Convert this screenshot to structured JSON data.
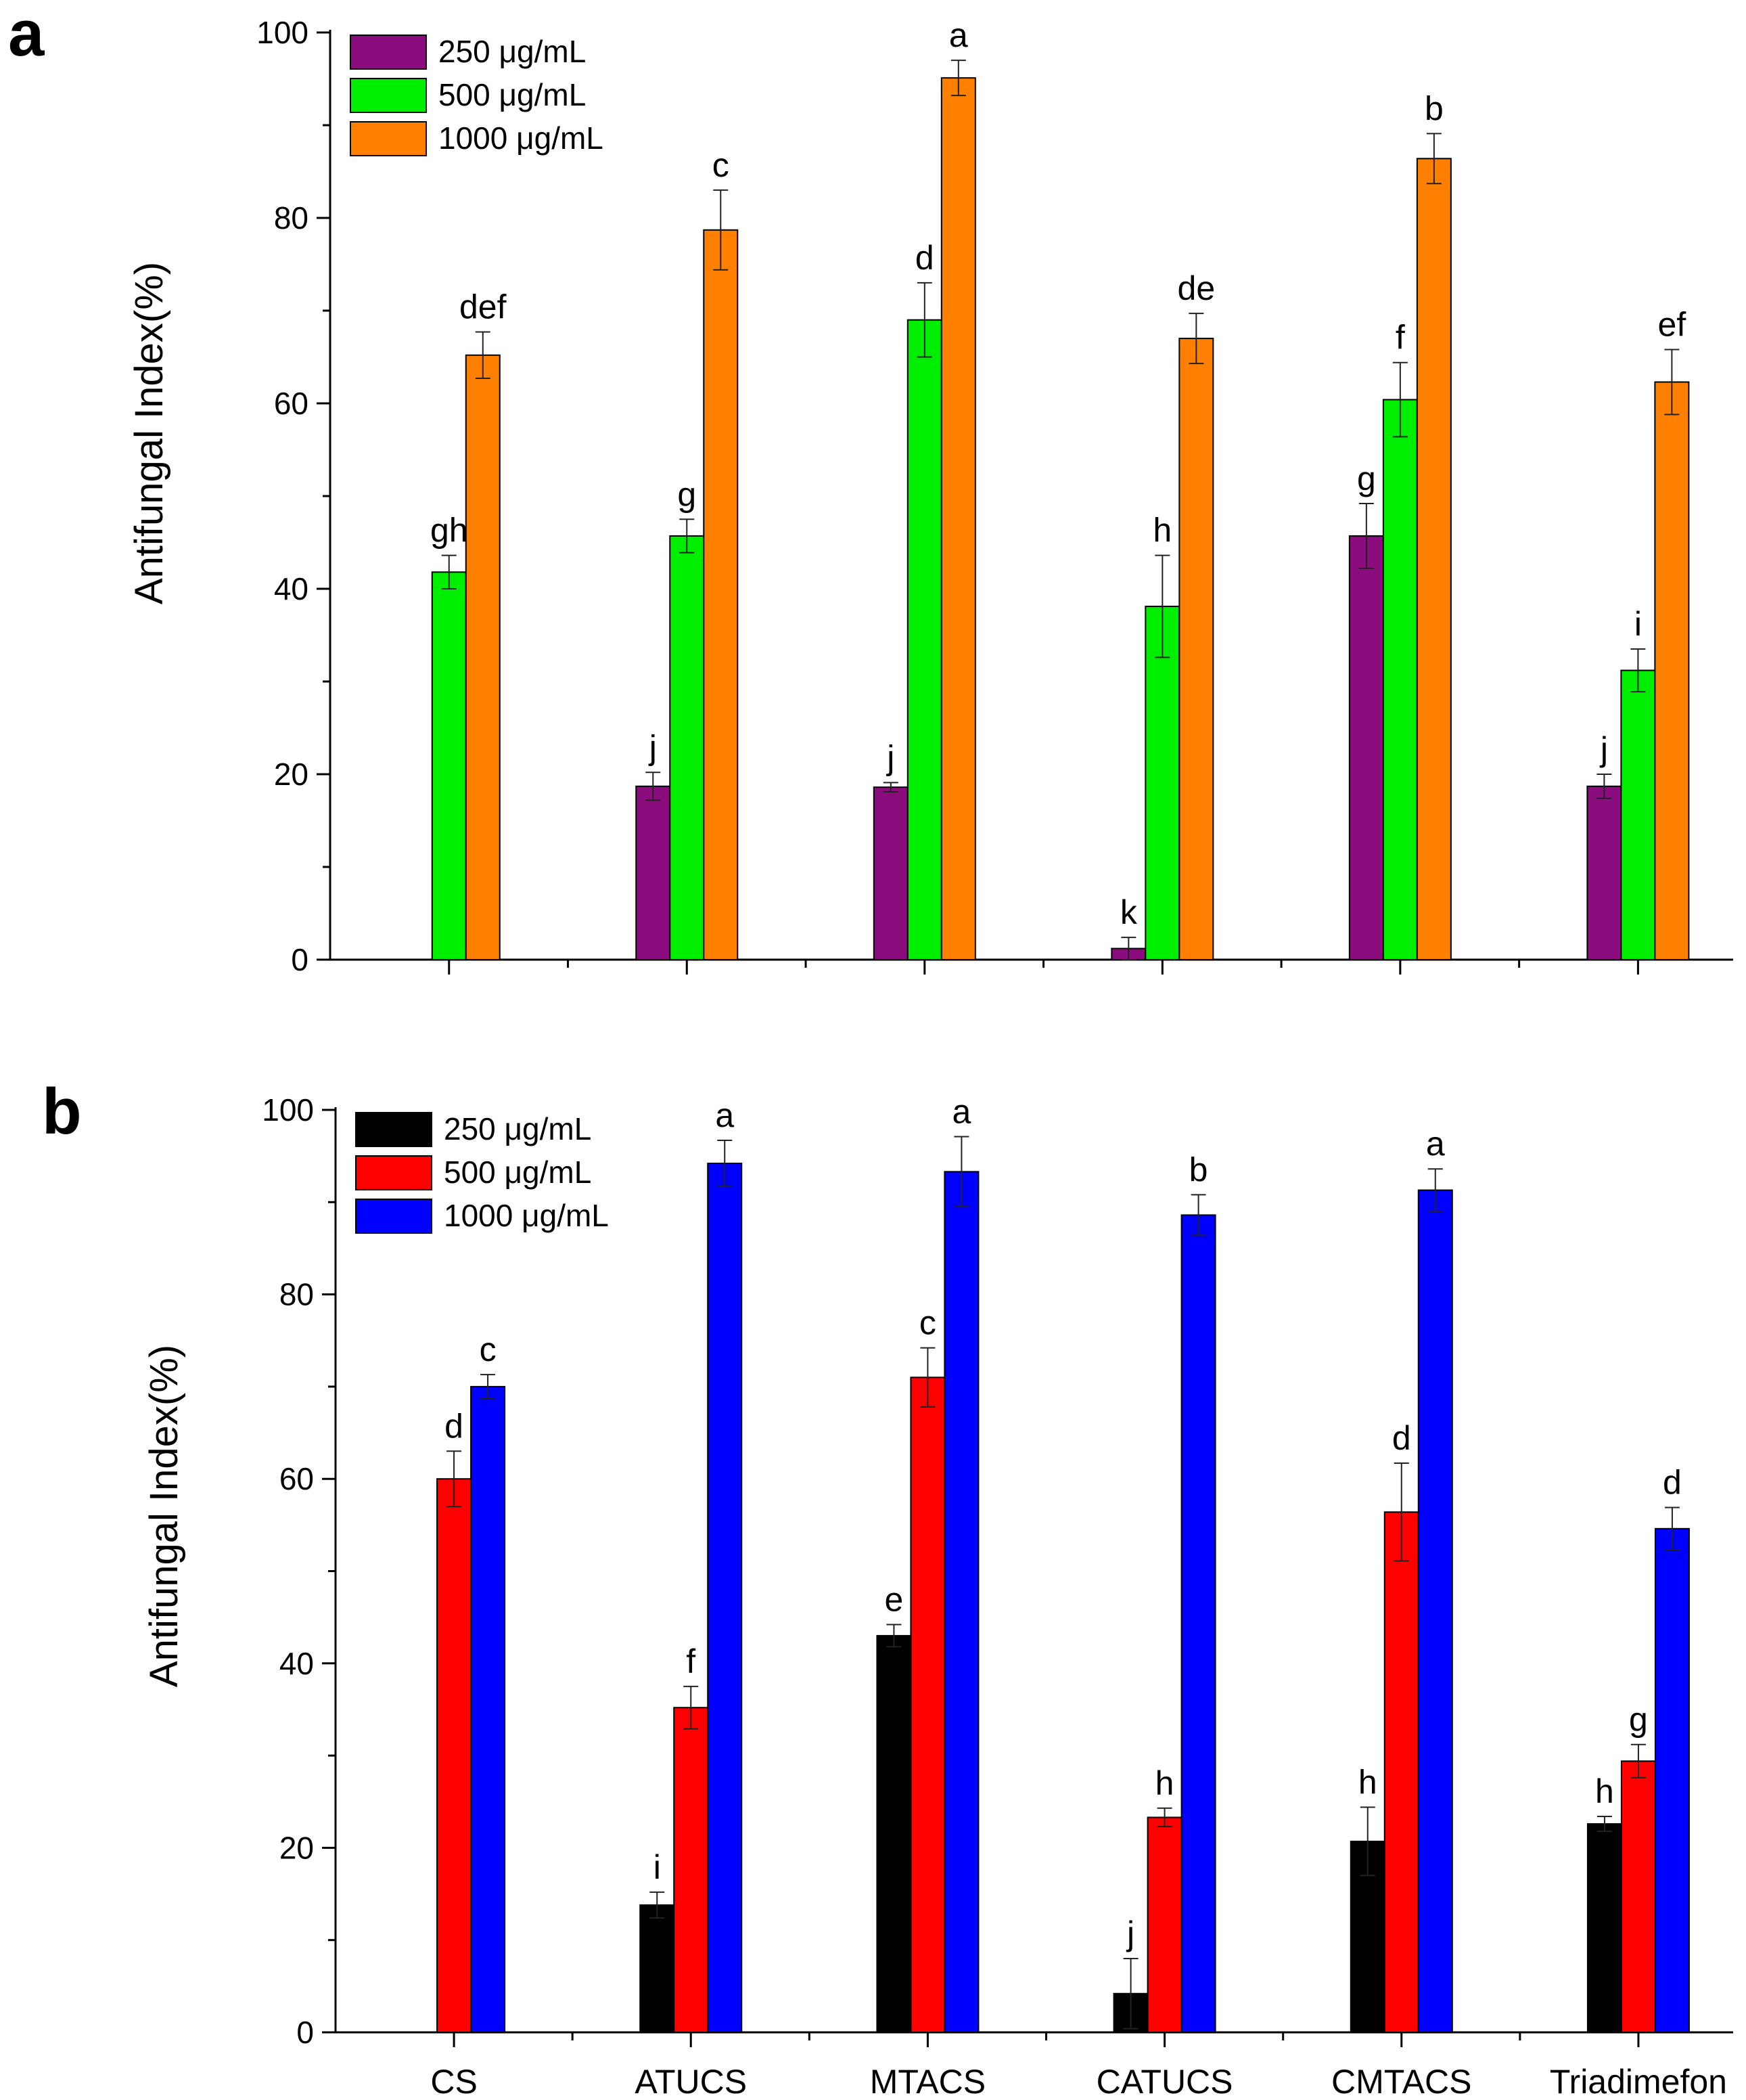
{
  "chart_data": [
    {
      "panel": "a",
      "type": "bar",
      "ylabel": "Antifungal Index(%)",
      "xlabel": "",
      "ylim": [
        0,
        100
      ],
      "yticks": [
        0,
        20,
        40,
        60,
        80,
        100
      ],
      "categories": [
        "CS",
        "ATUCS",
        "MTACS",
        "CATUCS",
        "CMTACS",
        "Triadimefon"
      ],
      "show_category_labels": false,
      "legend_position": "top-left",
      "series": [
        {
          "name": "250 μg/mL",
          "color": "#8b0d7d",
          "values": [
            0,
            18.7,
            18.6,
            1.2,
            45.7,
            18.7
          ],
          "errors": [
            0,
            1.5,
            0.5,
            1.2,
            3.5,
            1.3
          ],
          "labels": [
            "",
            "j",
            "j",
            "k",
            "g",
            "j"
          ]
        },
        {
          "name": "500 μg/mL",
          "color": "#00ee00",
          "values": [
            41.8,
            45.7,
            69.0,
            38.1,
            60.4,
            31.2
          ],
          "errors": [
            1.8,
            1.8,
            4.0,
            5.5,
            4.0,
            2.3
          ],
          "labels": [
            "gh",
            "g",
            "d",
            "h",
            "f",
            "i"
          ]
        },
        {
          "name": "1000 μg/mL",
          "color": "#ff8000",
          "values": [
            65.2,
            78.7,
            95.1,
            67.0,
            86.4,
            62.3
          ],
          "errors": [
            2.5,
            4.3,
            1.9,
            2.7,
            2.7,
            3.5
          ],
          "labels": [
            "def",
            "c",
            "a",
            "de",
            "b",
            "ef"
          ]
        }
      ]
    },
    {
      "panel": "b",
      "type": "bar",
      "ylabel": "Antifungal Index(%)",
      "xlabel": "",
      "ylim": [
        0,
        100
      ],
      "yticks": [
        0,
        20,
        40,
        60,
        80,
        100
      ],
      "categories": [
        "CS",
        "ATUCS",
        "MTACS",
        "CATUCS",
        "CMTACS",
        "Triadimefon"
      ],
      "show_category_labels": true,
      "legend_position": "top-left",
      "series": [
        {
          "name": "250 μg/mL",
          "color": "#000000",
          "values": [
            0,
            13.8,
            43.0,
            4.2,
            20.7,
            22.6
          ],
          "errors": [
            0,
            1.4,
            1.2,
            3.8,
            3.7,
            0.8
          ],
          "labels": [
            "",
            "i",
            "e",
            "j",
            "h",
            "h"
          ]
        },
        {
          "name": "500 μg/mL",
          "color": "#ff0000",
          "values": [
            60.0,
            35.2,
            71.0,
            23.3,
            56.4,
            29.4
          ],
          "errors": [
            3.0,
            2.3,
            3.2,
            1.0,
            5.3,
            1.8
          ],
          "labels": [
            "d",
            "f",
            "c",
            "h",
            "d",
            "g"
          ]
        },
        {
          "name": "1000 μg/mL",
          "color": "#0000ff",
          "values": [
            70.0,
            94.2,
            93.3,
            88.6,
            91.3,
            54.6
          ],
          "errors": [
            1.3,
            2.5,
            3.8,
            2.2,
            2.3,
            2.3
          ],
          "labels": [
            "c",
            "a",
            "a",
            "b",
            "a",
            "d"
          ]
        }
      ]
    }
  ]
}
